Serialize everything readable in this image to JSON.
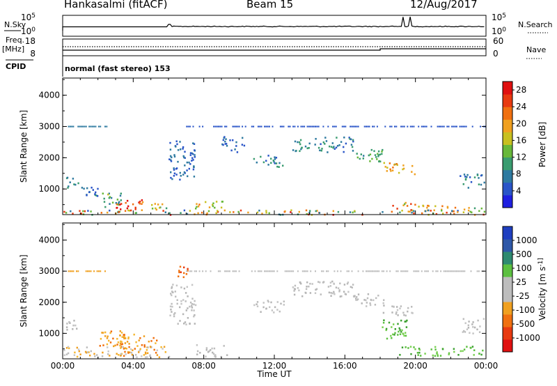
{
  "header": {
    "station": "Hankasalmi (fitACF)",
    "beam": "Beam 15",
    "date": "12/Aug/2017"
  },
  "meta_panel": {
    "nsky_label": "N.Sky",
    "nsearch_label": "N.Search",
    "noise_ticks": [
      "10^5",
      "10^0"
    ],
    "freq_label": "Freq.",
    "freq_unit": "[MHz]",
    "freq_ticks": [
      "18",
      "8"
    ],
    "nave_label": "Nave",
    "nave_ticks": [
      "60",
      "0"
    ],
    "cpid_label": "CPID",
    "cpid_text": "normal (fast stereo) 153"
  },
  "colors": {
    "power_scale": [
      "#1f1fe0",
      "#2a55c8",
      "#2e7aa0",
      "#3a9c70",
      "#68b83a",
      "#c8c020",
      "#f0a020",
      "#f07010",
      "#e83a10",
      "#e01010"
    ],
    "velocity_scale": [
      "#1f3fc0",
      "#2f58a8",
      "#2e8a70",
      "#5cc040",
      "#bdbdbd",
      "#bdbdbd",
      "#f0a020",
      "#f07010",
      "#e83a10",
      "#e01010"
    ]
  },
  "chart_data": [
    {
      "type": "heatmap",
      "name": "power",
      "ylabel": "Slant Range [km]",
      "y_ticks": [
        1000,
        2000,
        3000,
        4000
      ],
      "ylim": [
        180,
        4550
      ],
      "xlim_hours": [
        0,
        24
      ],
      "colorbar_label": "Power [dB]",
      "colorbar_ticks": [
        4,
        8,
        12,
        16,
        20,
        24,
        28
      ],
      "colorbar_range": [
        0,
        30
      ],
      "scatter_patches": [
        {
          "t": [
            0.1,
            0.9
          ],
          "r": [
            1050,
            1450
          ],
          "v": [
            6,
            12
          ]
        },
        {
          "t": [
            1.0,
            2.2
          ],
          "r": [
            800,
            1100
          ],
          "v": [
            4,
            10
          ]
        },
        {
          "t": [
            2.2,
            3.3
          ],
          "r": [
            450,
            900
          ],
          "v": [
            6,
            16
          ]
        },
        {
          "t": [
            3.0,
            4.5
          ],
          "r": [
            300,
            700
          ],
          "v": [
            18,
            30
          ]
        },
        {
          "t": [
            4.6,
            6.0
          ],
          "r": [
            300,
            600
          ],
          "v": [
            10,
            20
          ]
        },
        {
          "t": [
            7.5,
            9.5
          ],
          "r": [
            400,
            650
          ],
          "v": [
            12,
            22
          ]
        },
        {
          "t": [
            6.0,
            7.5
          ],
          "r": [
            1300,
            2600
          ],
          "v": [
            4,
            8
          ]
        },
        {
          "t": [
            9.0,
            10.5
          ],
          "r": [
            2200,
            2700
          ],
          "v": [
            4,
            8
          ]
        },
        {
          "t": [
            10.8,
            12.5
          ],
          "r": [
            1700,
            2100
          ],
          "v": [
            4,
            12
          ]
        },
        {
          "t": [
            13.0,
            14.2
          ],
          "r": [
            2200,
            2600
          ],
          "v": [
            6,
            12
          ]
        },
        {
          "t": [
            14.2,
            16.5
          ],
          "r": [
            2200,
            2700
          ],
          "v": [
            4,
            12
          ]
        },
        {
          "t": [
            16.5,
            18.2
          ],
          "r": [
            1900,
            2300
          ],
          "v": [
            8,
            14
          ]
        },
        {
          "t": [
            18.0,
            20.0
          ],
          "r": [
            1500,
            1900
          ],
          "v": [
            14,
            24
          ]
        },
        {
          "t": [
            18.5,
            20.5
          ],
          "r": [
            300,
            600
          ],
          "v": [
            14,
            28
          ]
        },
        {
          "t": [
            20.3,
            22.5
          ],
          "r": [
            300,
            500
          ],
          "v": [
            16,
            24
          ]
        },
        {
          "t": [
            22.5,
            23.9
          ],
          "r": [
            300,
            500
          ],
          "v": [
            10,
            20
          ]
        },
        {
          "t": [
            22.5,
            23.9
          ],
          "r": [
            1000,
            1500
          ],
          "v": [
            4,
            10
          ]
        },
        {
          "t": [
            0.0,
            24.0
          ],
          "r": [
            200,
            350
          ],
          "v": [
            4,
            28
          ]
        }
      ],
      "dotted_ranges": [
        {
          "t": [
            0.3,
            2.5
          ],
          "r": 3000,
          "v": 6
        },
        {
          "t": [
            7.0,
            24.0
          ],
          "r": 3000,
          "v": 4
        }
      ]
    },
    {
      "type": "heatmap",
      "name": "velocity",
      "ylabel": "Slant Range [km]",
      "y_ticks": [
        1000,
        2000,
        3000,
        4000
      ],
      "ylim": [
        180,
        4550
      ],
      "xlim_hours": [
        0,
        24
      ],
      "xlabel": "Time UT",
      "x_ticks": [
        "00:00",
        "04:00",
        "08:00",
        "12:00",
        "16:00",
        "20:00",
        "00:00"
      ],
      "colorbar_label": "Velocity [m s^-1]",
      "colorbar_ticks": [
        "1000",
        "500",
        "100",
        "25",
        "-25",
        "-100",
        "-500",
        "-1000"
      ],
      "scatter_patches": [
        {
          "t": [
            0.1,
            0.9
          ],
          "r": [
            1050,
            1450
          ],
          "v": "gray"
        },
        {
          "t": [
            2.0,
            3.5
          ],
          "r": [
            600,
            1100
          ],
          "v": "orange"
        },
        {
          "t": [
            3.2,
            5.5
          ],
          "r": [
            300,
            1000
          ],
          "v": "orange"
        },
        {
          "t": [
            0.0,
            6.0
          ],
          "r": [
            250,
            600
          ],
          "v": "orange-gray"
        },
        {
          "t": [
            6.5,
            7.2
          ],
          "r": [
            2800,
            3200
          ],
          "v": "red"
        },
        {
          "t": [
            6.0,
            7.5
          ],
          "r": [
            1300,
            2600
          ],
          "v": "gray"
        },
        {
          "t": [
            7.5,
            9.5
          ],
          "r": [
            250,
            650
          ],
          "v": "gray"
        },
        {
          "t": [
            10.8,
            12.5
          ],
          "r": [
            1700,
            2100
          ],
          "v": "gray"
        },
        {
          "t": [
            13.0,
            16.5
          ],
          "r": [
            2200,
            2700
          ],
          "v": "gray"
        },
        {
          "t": [
            16.5,
            18.2
          ],
          "r": [
            1900,
            2300
          ],
          "v": "gray"
        },
        {
          "t": [
            18.0,
            20.0
          ],
          "r": [
            1600,
            1900
          ],
          "v": "gray"
        },
        {
          "t": [
            18.0,
            19.5
          ],
          "r": [
            800,
            1500
          ],
          "v": "green"
        },
        {
          "t": [
            19.0,
            23.9
          ],
          "r": [
            300,
            600
          ],
          "v": "green"
        },
        {
          "t": [
            22.5,
            23.9
          ],
          "r": [
            1000,
            1500
          ],
          "v": "gray"
        }
      ],
      "dotted_ranges": [
        {
          "t": [
            0.3,
            2.5
          ],
          "r": 3000,
          "v": "orange"
        },
        {
          "t": [
            7.0,
            24.0
          ],
          "r": 3000,
          "v": "gray"
        }
      ]
    }
  ]
}
